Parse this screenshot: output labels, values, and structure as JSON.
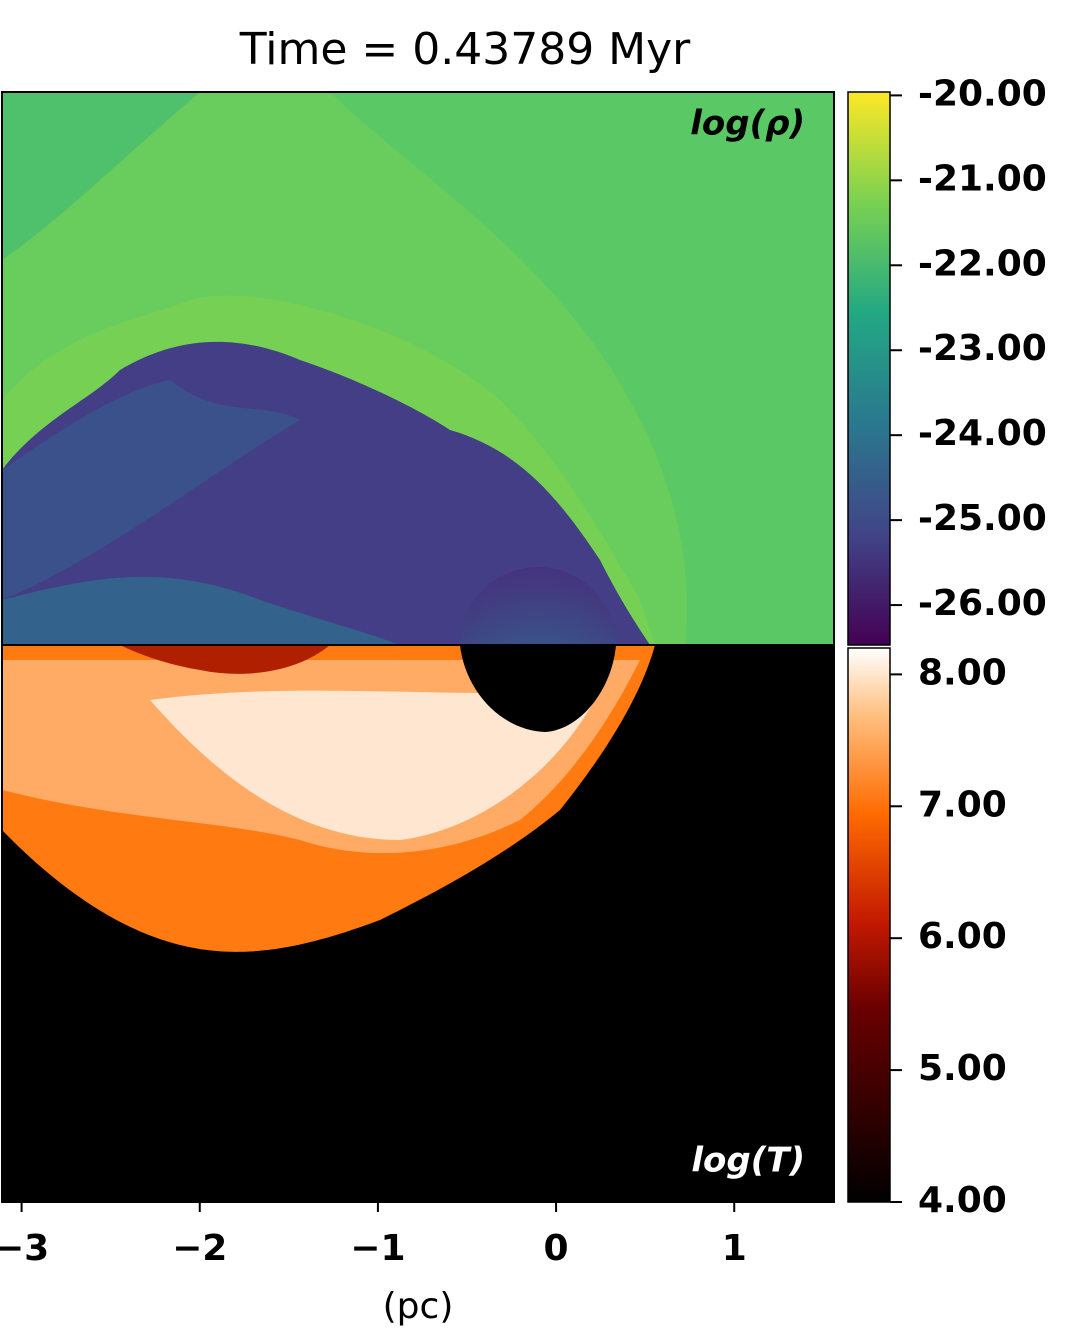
{
  "chart_data": {
    "type": "image",
    "title": "Time = 0.43789 Myr",
    "xlabel": "(pc)",
    "xlim": [
      -3.11,
      1.56
    ],
    "xticks": [
      {
        "value": -3,
        "label": "−3"
      },
      {
        "value": -2,
        "label": "−2"
      },
      {
        "value": -1,
        "label": "−1"
      },
      0,
      1
    ],
    "panels": [
      {
        "label": "log(ρ)",
        "colorbar": {
          "lim": [
            -26.47,
            -19.96
          ],
          "ticks": [
            {
              "value": -20,
              "label": "-20.00"
            },
            {
              "value": -21,
              "label": "-21.00"
            },
            {
              "value": -22,
              "label": "-22.00"
            },
            {
              "value": -23,
              "label": "-23.00"
            },
            {
              "value": -24,
              "label": "-24.00"
            },
            {
              "value": -25,
              "label": "-25.00"
            },
            {
              "value": -26,
              "label": "-26.00"
            }
          ]
        }
      },
      {
        "label": "log(T)",
        "colorbar": {
          "lim": [
            4,
            8.2
          ],
          "ticks": [
            {
              "value": 8,
              "label": "8.00"
            },
            {
              "value": 7,
              "label": "7.00"
            },
            {
              "value": 6,
              "label": "6.00"
            },
            {
              "value": 5,
              "label": "5.00"
            },
            {
              "value": 4,
              "label": "4.00"
            }
          ]
        }
      }
    ]
  }
}
